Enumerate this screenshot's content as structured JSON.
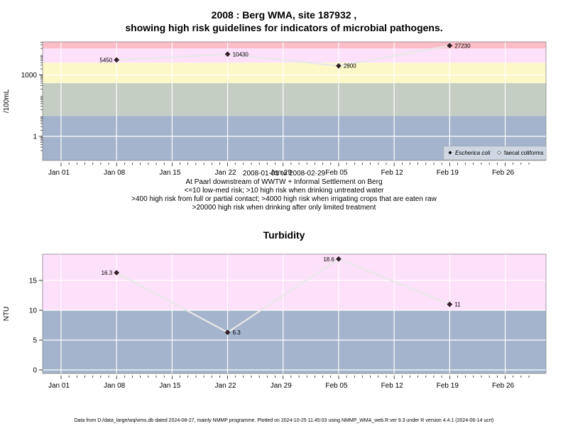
{
  "chart_data": [
    {
      "type": "line",
      "title": "2008 : Berg WMA, site 187932 ,",
      "subtitle": "showing high risk guidelines for indicators of microbial pathogens.",
      "ylabel": "/100mL",
      "yscale": "log",
      "yticks": [
        {
          "value": 1,
          "label": "1"
        },
        {
          "value": 1000,
          "label": "1000"
        }
      ],
      "x_tick_labels": [
        "Jan 01",
        "Jan 08",
        "Jan 15",
        "Jan 22",
        "Jan 29",
        "Feb 05",
        "Feb 12",
        "Feb 19",
        "Feb 26"
      ],
      "series": [
        {
          "name": "Escherica coli",
          "x": [
            "2008-01-08",
            "2008-01-22",
            "2008-02-05",
            "2008-02-19"
          ],
          "values": [
            5450,
            10430,
            2800,
            27230
          ],
          "labels": [
            "5450",
            "10430",
            "2800",
            "27230"
          ]
        }
      ],
      "legend": {
        "position": "bottom-right",
        "entries": [
          "Escherica coli",
          "faecal coliforms"
        ]
      },
      "bands": [
        {
          "from": 0.01,
          "to": 10,
          "color": "#a3b4cc"
        },
        {
          "from": 10,
          "to": 400,
          "color": "#c5cec3"
        },
        {
          "from": 400,
          "to": 4000,
          "color": "#fdf8c8"
        },
        {
          "from": 4000,
          "to": 20000,
          "color": "#fde0fa"
        },
        {
          "from": 20000,
          "to": 100000,
          "color": "#fcbcc8"
        }
      ],
      "notes": [
        "2008-01-01 to 2008-02-29",
        "At Paarl downstream of WWTW + Informal Settlement on Berg",
        "<=10 low-med risk; >10 high risk when drinking untreated water",
        ">400 high risk from full or partial contact; >4000 high risk when irrigating crops that are eaten raw",
        ">20000 high risk when drinking after only limited treatment"
      ]
    },
    {
      "type": "line",
      "title": "Turbidity",
      "ylabel": "NTU",
      "yticks": [
        {
          "value": 0,
          "label": "0"
        },
        {
          "value": 5,
          "label": "5"
        },
        {
          "value": 10,
          "label": "10"
        },
        {
          "value": 15,
          "label": "15"
        }
      ],
      "x_tick_labels": [
        "Jan 01",
        "Jan 08",
        "Jan 15",
        "Jan 22",
        "Jan 29",
        "Feb 05",
        "Feb 12",
        "Feb 19",
        "Feb 26"
      ],
      "series": [
        {
          "x": [
            "2008-01-08",
            "2008-01-22",
            "2008-02-05",
            "2008-02-19"
          ],
          "values": [
            16.3,
            6.3,
            18.6,
            11
          ],
          "labels": [
            "16.3",
            "6.3",
            "18.6",
            "11"
          ]
        }
      ],
      "bands": [
        {
          "from": -0.7,
          "to": 10,
          "color": "#a3b4cc"
        },
        {
          "from": 10,
          "to": 19.6,
          "color": "#fde0fa"
        }
      ]
    }
  ],
  "footer": "Data from D:/data_large/wq/wms.db dated 2024-08-27, mainly NMMP programme. Plotted on 2024-10-25 11:45:03 using NMMP_WMA_web.R ver 9.3 under R version 4.4.1 (2024-06-14 ucrt)"
}
